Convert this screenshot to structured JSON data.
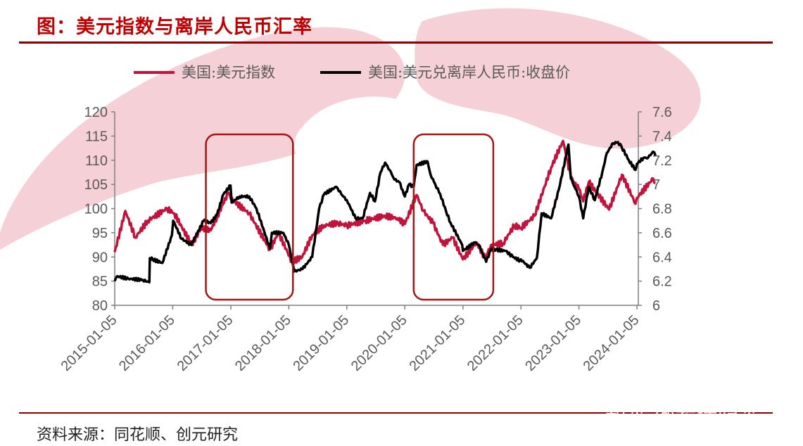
{
  "figure": {
    "title": "图：美元指数与离岸人民币汇率",
    "source": "资料来源：同花顺、创元研究",
    "watermark": "知乎 @希瑞归来"
  },
  "colors": {
    "accent": "#c00000",
    "rule": "#8b0000",
    "series_dxy": "#c0143c",
    "series_cnh": "#000000",
    "highlight_box": "#a31515",
    "background_shape": "#f3c6cf"
  },
  "chart_data": {
    "type": "line",
    "title": "",
    "legend_position": "top",
    "grid": false,
    "x_ticks": [
      "2015-01-05",
      "2016-01-05",
      "2017-01-05",
      "2018-01-05",
      "2019-01-05",
      "2020-01-05",
      "2021-01-05",
      "2022-01-05",
      "2023-01-05",
      "2024-01-05"
    ],
    "y_left": {
      "range": [
        80,
        120
      ],
      "ticks": [
        "80",
        "85",
        "90",
        "95",
        "100",
        "105",
        "110",
        "115",
        "120"
      ]
    },
    "y_right": {
      "range": [
        6,
        7.6
      ],
      "ticks": [
        "6",
        "6.2",
        "6.4",
        "6.6",
        "6.8",
        "7",
        "7.2",
        "7.4",
        "7.6"
      ]
    },
    "x_range": [
      "2015-01-05",
      "2024-05-01"
    ],
    "series": [
      {
        "name": "美国:美元指数",
        "axis": "left",
        "points": [
          [
            "2015-01-05",
            91
          ],
          [
            "2015-03-13",
            99.5
          ],
          [
            "2015-05-15",
            94
          ],
          [
            "2015-08-01",
            97.5
          ],
          [
            "2015-11-30",
            100
          ],
          [
            "2016-01-15",
            99
          ],
          [
            "2016-05-03",
            92.5
          ],
          [
            "2016-07-01",
            96
          ],
          [
            "2016-09-01",
            95.5
          ],
          [
            "2016-12-20",
            103.3
          ],
          [
            "2017-01-05",
            102
          ],
          [
            "2017-05-01",
            99
          ],
          [
            "2017-09-08",
            91.5
          ],
          [
            "2017-11-01",
            95
          ],
          [
            "2018-01-25",
            89
          ],
          [
            "2018-03-30",
            90
          ],
          [
            "2018-06-01",
            94.5
          ],
          [
            "2018-08-15",
            96.5
          ],
          [
            "2018-11-10",
            97
          ],
          [
            "2019-01-05",
            96.5
          ],
          [
            "2019-05-01",
            97.5
          ],
          [
            "2019-09-01",
            98.5
          ],
          [
            "2019-11-20",
            98
          ],
          [
            "2020-01-05",
            96.8
          ],
          [
            "2020-03-19",
            102.8
          ],
          [
            "2020-05-01",
            99.5
          ],
          [
            "2020-07-01",
            97
          ],
          [
            "2020-09-01",
            92.5
          ],
          [
            "2020-11-01",
            94
          ],
          [
            "2021-01-05",
            89.5
          ],
          [
            "2021-03-31",
            93
          ],
          [
            "2021-05-25",
            89.7
          ],
          [
            "2021-07-01",
            92.5
          ],
          [
            "2021-09-15",
            92.8
          ],
          [
            "2021-11-24",
            96.5
          ],
          [
            "2022-01-05",
            96
          ],
          [
            "2022-04-01",
            98.5
          ],
          [
            "2022-07-14",
            108.5
          ],
          [
            "2022-09-27",
            114
          ],
          [
            "2022-11-15",
            106.5
          ],
          [
            "2023-01-05",
            104
          ],
          [
            "2023-02-01",
            101.5
          ],
          [
            "2023-03-08",
            105.5
          ],
          [
            "2023-07-14",
            99.8
          ],
          [
            "2023-10-03",
            107
          ],
          [
            "2023-12-27",
            101
          ],
          [
            "2024-01-05",
            102.2
          ],
          [
            "2024-04-16",
            106.2
          ],
          [
            "2024-05-01",
            105.3
          ]
        ]
      },
      {
        "name": "美国:美元兑离岸人民币:收盘价",
        "axis": "right",
        "points": [
          [
            "2015-01-05",
            6.2
          ],
          [
            "2015-01-20",
            6.24
          ],
          [
            "2015-04-01",
            6.22
          ],
          [
            "2015-07-01",
            6.21
          ],
          [
            "2015-08-11",
            6.19
          ],
          [
            "2015-08-14",
            6.39
          ],
          [
            "2015-09-01",
            6.38
          ],
          [
            "2015-11-01",
            6.35
          ],
          [
            "2015-12-31",
            6.58
          ],
          [
            "2016-01-08",
            6.7
          ],
          [
            "2016-03-01",
            6.55
          ],
          [
            "2016-05-01",
            6.5
          ],
          [
            "2016-07-18",
            6.7
          ],
          [
            "2016-09-01",
            6.68
          ],
          [
            "2016-10-10",
            6.75
          ],
          [
            "2016-11-20",
            6.92
          ],
          [
            "2017-01-03",
            6.99
          ],
          [
            "2017-01-10",
            6.85
          ],
          [
            "2017-03-01",
            6.9
          ],
          [
            "2017-05-01",
            6.9
          ],
          [
            "2017-06-15",
            6.8
          ],
          [
            "2017-09-08",
            6.47
          ],
          [
            "2017-09-20",
            6.6
          ],
          [
            "2017-12-01",
            6.6
          ],
          [
            "2018-01-05",
            6.5
          ],
          [
            "2018-02-08",
            6.28
          ],
          [
            "2018-04-01",
            6.3
          ],
          [
            "2018-06-01",
            6.4
          ],
          [
            "2018-07-15",
            6.8
          ],
          [
            "2018-08-15",
            6.92
          ],
          [
            "2018-10-31",
            6.98
          ],
          [
            "2018-12-01",
            6.92
          ],
          [
            "2019-01-05",
            6.87
          ],
          [
            "2019-03-01",
            6.72
          ],
          [
            "2019-04-15",
            6.72
          ],
          [
            "2019-05-31",
            6.93
          ],
          [
            "2019-07-01",
            6.86
          ],
          [
            "2019-08-05",
            7.1
          ],
          [
            "2019-09-03",
            7.18
          ],
          [
            "2019-10-01",
            7.12
          ],
          [
            "2019-11-01",
            7.04
          ],
          [
            "2019-12-01",
            7.02
          ],
          [
            "2020-01-05",
            6.9
          ],
          [
            "2020-02-01",
            7.0
          ],
          [
            "2020-03-01",
            6.98
          ],
          [
            "2020-03-19",
            7.16
          ],
          [
            "2020-05-27",
            7.19
          ],
          [
            "2020-06-15",
            7.08
          ],
          [
            "2020-07-15",
            7.0
          ],
          [
            "2020-08-15",
            6.92
          ],
          [
            "2020-09-20",
            6.78
          ],
          [
            "2020-10-20",
            6.68
          ],
          [
            "2020-12-31",
            6.5
          ],
          [
            "2021-01-05",
            6.45
          ],
          [
            "2021-03-20",
            6.52
          ],
          [
            "2021-04-15",
            6.5
          ],
          [
            "2021-05-31",
            6.36
          ],
          [
            "2021-06-30",
            6.46
          ],
          [
            "2021-08-01",
            6.46
          ],
          [
            "2021-10-01",
            6.45
          ],
          [
            "2021-11-15",
            6.4
          ],
          [
            "2021-12-31",
            6.37
          ],
          [
            "2022-01-05",
            6.38
          ],
          [
            "2022-03-01",
            6.31
          ],
          [
            "2022-04-15",
            6.39
          ],
          [
            "2022-05-15",
            6.76
          ],
          [
            "2022-07-14",
            6.72
          ],
          [
            "2022-09-01",
            6.96
          ],
          [
            "2022-10-31",
            7.33
          ],
          [
            "2022-11-15",
            7.05
          ],
          [
            "2022-12-15",
            6.96
          ],
          [
            "2023-01-05",
            6.9
          ],
          [
            "2023-02-01",
            6.72
          ],
          [
            "2023-03-08",
            6.98
          ],
          [
            "2023-04-15",
            6.87
          ],
          [
            "2023-06-01",
            7.1
          ],
          [
            "2023-06-30",
            7.26
          ],
          [
            "2023-08-08",
            7.34
          ],
          [
            "2023-09-08",
            7.35
          ],
          [
            "2023-10-01",
            7.31
          ],
          [
            "2023-11-15",
            7.2
          ],
          [
            "2023-12-27",
            7.12
          ],
          [
            "2024-01-05",
            7.17
          ],
          [
            "2024-02-15",
            7.22
          ],
          [
            "2024-03-15",
            7.22
          ],
          [
            "2024-04-15",
            7.27
          ],
          [
            "2024-05-01",
            7.24
          ]
        ]
      }
    ],
    "highlight_periods": [
      {
        "start": "2016-08-01",
        "end": "2018-01-31"
      },
      {
        "start": "2020-03-01",
        "end": "2021-07-15"
      }
    ]
  }
}
